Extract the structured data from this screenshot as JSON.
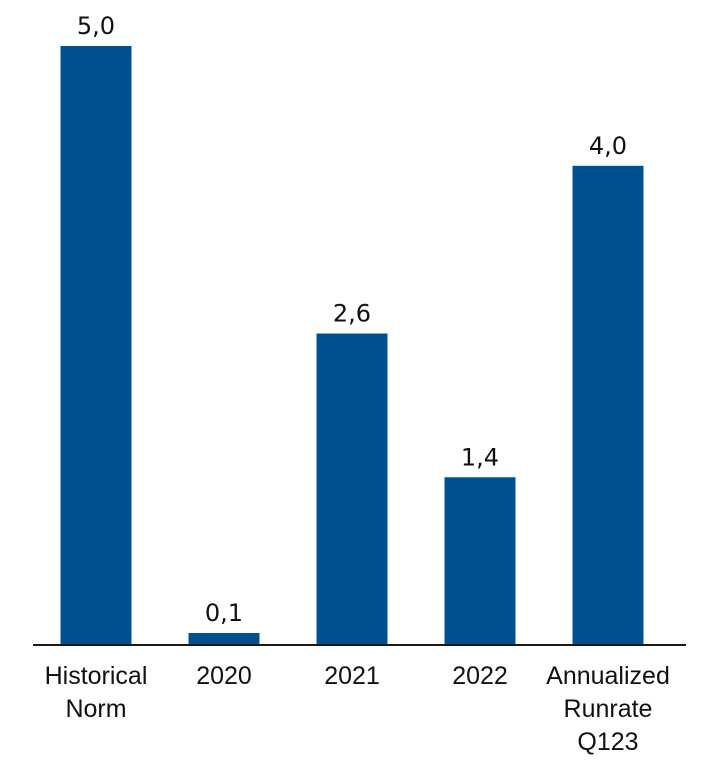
{
  "chart_data": {
    "type": "bar",
    "categories": [
      [
        "Historical",
        "Norm"
      ],
      [
        "2020"
      ],
      [
        "2021"
      ],
      [
        "2022"
      ],
      [
        "Annualized",
        "Runrate",
        "Q123"
      ]
    ],
    "values": [
      5.0,
      0.1,
      2.6,
      1.4,
      4.0
    ],
    "value_labels": [
      "5,0",
      "0,1",
      "2,6",
      "1,4",
      "4,0"
    ],
    "title": "",
    "xlabel": "",
    "ylabel": "",
    "ylim": [
      0,
      5.0
    ],
    "grid": false,
    "legend": "none",
    "bar_color": "#00508f",
    "axis_color": "#1a1a1a"
  }
}
